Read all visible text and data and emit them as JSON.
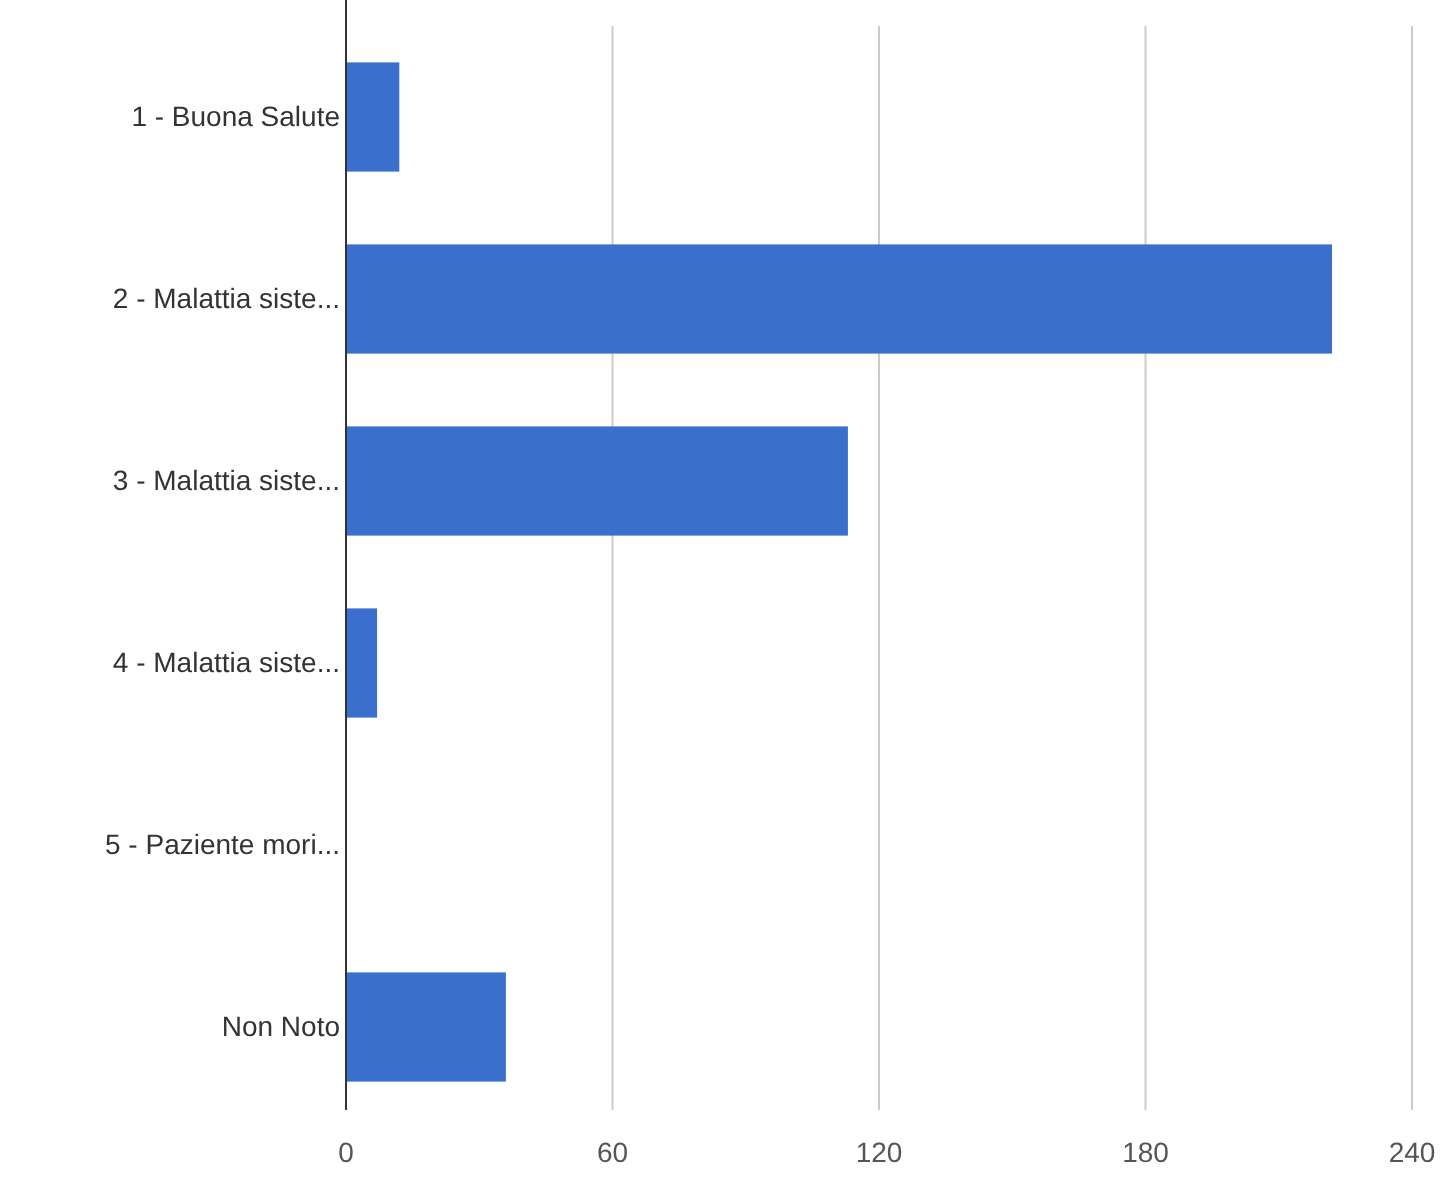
{
  "chart_data": {
    "type": "bar",
    "orientation": "horizontal",
    "categories": [
      "1 - Buona Salute",
      "2 - Malattia siste...",
      "3 - Malattia siste...",
      "4 - Malattia siste...",
      "5 - Paziente mori...",
      "Non Noto"
    ],
    "values": [
      12,
      222,
      113,
      7,
      0,
      36
    ],
    "color": "#3a6fce",
    "xlim": [
      0,
      240
    ],
    "xticks": [
      0,
      60,
      120,
      180,
      240
    ],
    "grid": "x"
  }
}
